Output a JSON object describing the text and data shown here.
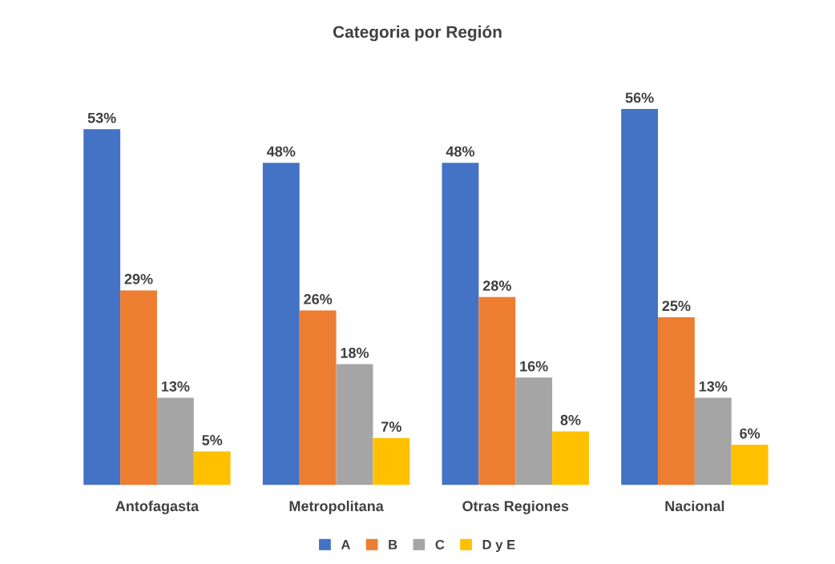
{
  "chart_data": {
    "type": "bar",
    "title": "Categoria por Región",
    "categories": [
      "Antofagasta",
      "Metropolitana",
      "Otras Regiones",
      "Nacional"
    ],
    "series": [
      {
        "name": "A",
        "color": "#4472c4",
        "values": [
          53,
          48,
          48,
          56
        ],
        "value_labels": [
          "53%",
          "48%",
          "48%",
          "56%"
        ]
      },
      {
        "name": "B",
        "color": "#ed7d31",
        "values": [
          29,
          26,
          28,
          25
        ],
        "value_labels": [
          "29%",
          "26%",
          "28%",
          "25%"
        ]
      },
      {
        "name": "C",
        "color": "#a5a5a5",
        "values": [
          13,
          18,
          16,
          13
        ],
        "value_labels": [
          "13%",
          "18%",
          "16%",
          "13%"
        ]
      },
      {
        "name": "D y E",
        "color": "#ffc000",
        "values": [
          5,
          7,
          8,
          6
        ],
        "value_labels": [
          "5%",
          "7%",
          "8%",
          "6%"
        ]
      }
    ],
    "legend": "bottom",
    "grid": false
  }
}
